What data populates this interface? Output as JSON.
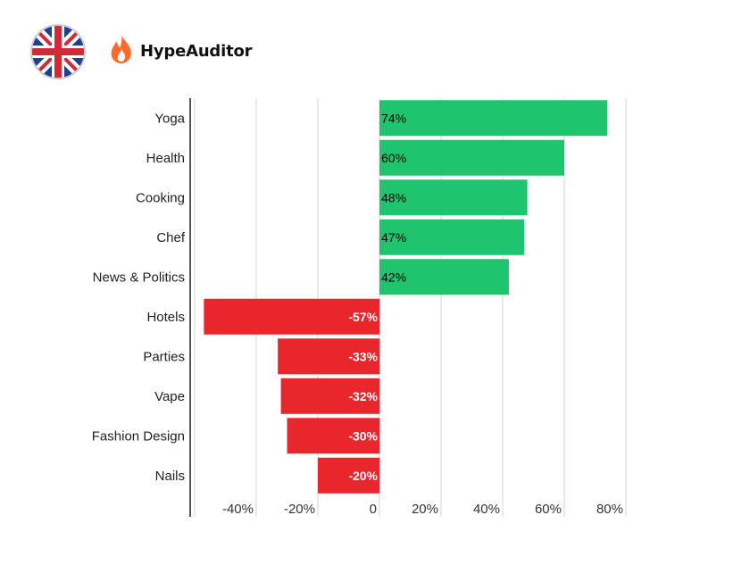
{
  "brand": {
    "name": "HypeAuditor",
    "flag_icon": "uk-flag-icon",
    "logo_icon": "flame-icon"
  },
  "colors": {
    "positive": "#1ec46e",
    "negative": "#e8262b",
    "grid": "#d6d6d6",
    "axis": "#555555"
  },
  "chart_data": {
    "type": "bar",
    "orientation": "horizontal",
    "categories": [
      "Yoga",
      "Health",
      "Cooking",
      "Chef",
      "News & Politics",
      "Hotels",
      "Parties",
      "Vape",
      "Fashion Design",
      "Nails"
    ],
    "values": [
      74,
      60,
      48,
      47,
      42,
      -57,
      -33,
      -32,
      -30,
      -20
    ],
    "value_labels": [
      "74%",
      "60%",
      "48%",
      "47%",
      "42%",
      "-57%",
      "-33%",
      "-32%",
      "-30%",
      "-20%"
    ],
    "xlim": [
      -60,
      80
    ],
    "x_ticks": [
      -40,
      -20,
      0,
      20,
      40,
      60,
      80
    ],
    "x_tick_labels": [
      "-40%",
      "-20%",
      "0",
      "20%",
      "40%",
      "60%",
      "80%"
    ],
    "grid": true,
    "title": "",
    "xlabel": "",
    "ylabel": ""
  }
}
